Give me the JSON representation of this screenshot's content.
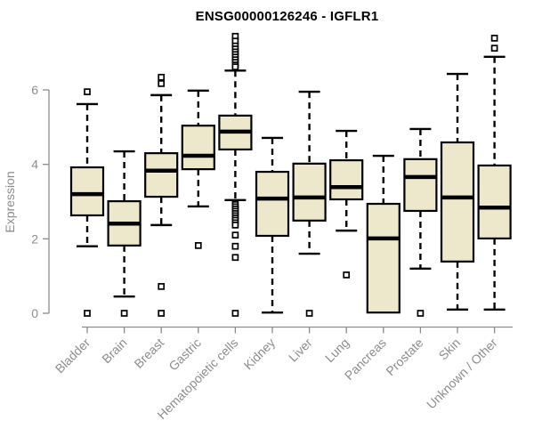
{
  "chart_data": {
    "type": "boxplot",
    "title": "ENSG00000126246 - IGFLR1",
    "ylabel": "Expression",
    "xlabel": "",
    "y_ticks": [
      0,
      2,
      4,
      6
    ],
    "ylim": [
      0,
      7.5
    ],
    "grid": false,
    "legend": "none",
    "categories": [
      "Bladder",
      "Brain",
      "Breast",
      "Gastric",
      "Hematopoietic cells",
      "Kidney",
      "Liver",
      "Lung",
      "Pancreas",
      "Prostate",
      "Skin",
      "Unknown / Other"
    ],
    "series": [
      {
        "name": "Bladder",
        "low": 1.8,
        "q1": 2.63,
        "median": 3.2,
        "q3": 3.92,
        "high": 5.62,
        "outliers": [
          5.95,
          0.0
        ]
      },
      {
        "name": "Brain",
        "low": 0.45,
        "q1": 1.82,
        "median": 2.41,
        "q3": 3.01,
        "high": 4.35,
        "outliers": [
          0.0
        ]
      },
      {
        "name": "Breast",
        "low": 2.37,
        "q1": 3.13,
        "median": 3.83,
        "q3": 4.3,
        "high": 5.86,
        "outliers": [
          6.34,
          6.17,
          0.72,
          0.0
        ]
      },
      {
        "name": "Gastric",
        "low": 2.87,
        "q1": 3.87,
        "median": 4.23,
        "q3": 5.04,
        "high": 5.98,
        "outliers": [
          1.82
        ]
      },
      {
        "name": "Hematopoietic cells",
        "low": 3.04,
        "q1": 4.4,
        "median": 4.88,
        "q3": 5.31,
        "high": 6.52,
        "outliers": [
          7.44,
          7.31,
          7.18,
          7.1,
          7.02,
          6.95,
          6.88,
          6.81,
          6.74,
          6.67,
          6.62,
          2.92,
          2.86,
          2.8,
          2.74,
          2.68,
          2.62,
          2.56,
          2.5,
          2.43,
          2.37,
          2.1,
          1.8,
          1.5,
          0.0
        ]
      },
      {
        "name": "Kidney",
        "low": 0.02,
        "q1": 2.08,
        "median": 3.08,
        "q3": 3.8,
        "high": 4.71,
        "outliers": []
      },
      {
        "name": "Liver",
        "low": 1.6,
        "q1": 2.49,
        "median": 3.11,
        "q3": 4.02,
        "high": 5.95,
        "outliers": [
          0.0
        ]
      },
      {
        "name": "Lung",
        "low": 2.22,
        "q1": 3.06,
        "median": 3.39,
        "q3": 4.11,
        "high": 4.9,
        "outliers": [
          1.03
        ]
      },
      {
        "name": "Pancreas",
        "low": 0.02,
        "q1": 0.02,
        "median": 2.01,
        "q3": 2.94,
        "high": 4.23,
        "outliers": []
      },
      {
        "name": "Prostate",
        "low": 1.2,
        "q1": 2.75,
        "median": 3.66,
        "q3": 4.14,
        "high": 4.95,
        "outliers": [
          0.0
        ]
      },
      {
        "name": "Skin",
        "low": 0.1,
        "q1": 1.39,
        "median": 3.11,
        "q3": 4.59,
        "high": 6.43,
        "outliers": []
      },
      {
        "name": "Unknown / Other",
        "low": 0.1,
        "q1": 2.01,
        "median": 2.84,
        "q3": 3.97,
        "high": 6.89,
        "outliers": [
          7.39,
          7.12
        ]
      }
    ],
    "colors": {
      "box_fill": "#EDE7CC",
      "box_border": "#000000",
      "median": "#000000",
      "whisker": "#000000",
      "outlier_border": "#000000",
      "axis": "#8C8C8C",
      "tick_label": "#8C8C8C",
      "title": "#000000",
      "background": "#FFFFFF"
    }
  }
}
